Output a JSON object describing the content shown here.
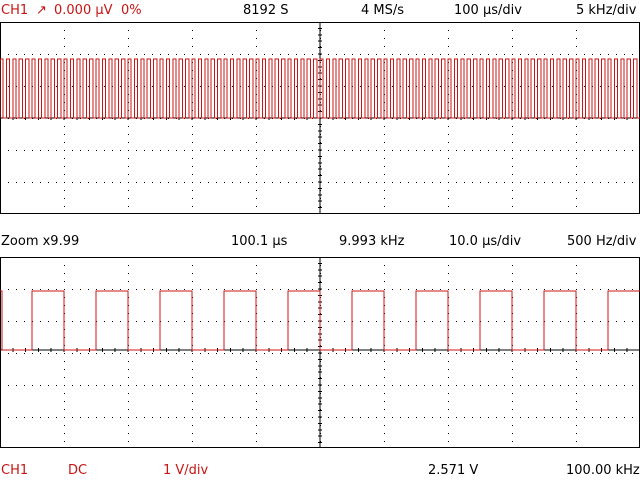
{
  "top_bar": {
    "channel": "CH1",
    "trigger_icon": "rising-edge-arrow",
    "trigger_symbol": "↗",
    "trigger_level": "0.000 µV",
    "trigger_percent": "0%",
    "samples": "8192 S",
    "sample_rate": "4 MS/s",
    "time_div": "100 µs/div",
    "freq_div": "5 kHz/div"
  },
  "zoom_bar": {
    "zoom": "Zoom x9.99",
    "period": "100.1 µs",
    "frequency": "9.993 kHz",
    "time_div": "10.0 µs/div",
    "freq_div": "500 Hz/div"
  },
  "bottom_bar": {
    "channel": "CH1",
    "coupling": "DC",
    "volts_div": "1 V/div",
    "voltage": "2.571 V",
    "frequency": "100.00 kHz"
  },
  "colors": {
    "trace": "#c81414",
    "grid": "#000000",
    "background": "#ffffff"
  },
  "waveform": {
    "main_cycles": 100,
    "zoom_cycles": 10,
    "duty_cycle": 0.5,
    "high_level_div": 1.0,
    "low_level_div": 0.0
  }
}
